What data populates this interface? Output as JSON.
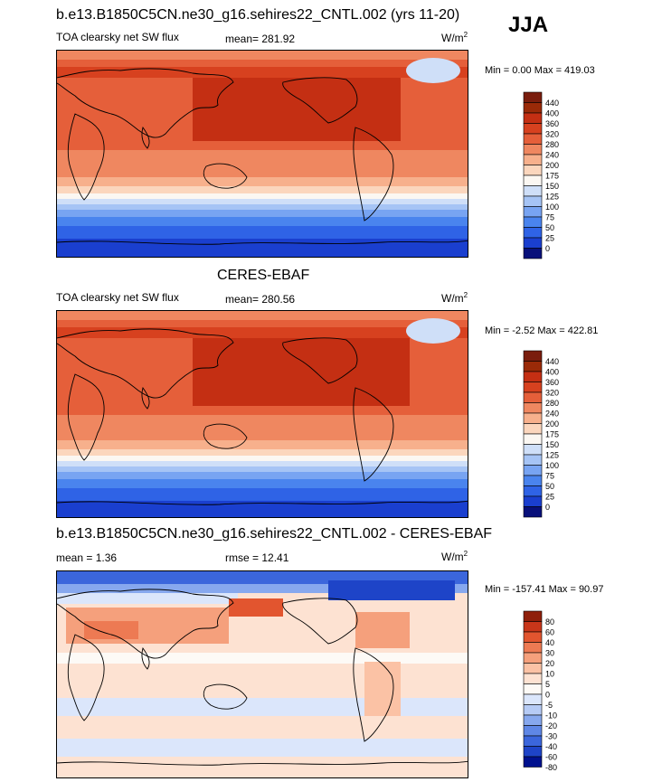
{
  "season": "JJA",
  "colors": {
    "abs_scale": [
      "#08107a",
      "#1a3fcf",
      "#2f63e6",
      "#4a84ee",
      "#78a4f2",
      "#a6c4f5",
      "#cfdff8",
      "#fbf7f2",
      "#fbd6bd",
      "#f7b08c",
      "#ef8760",
      "#e55f3a",
      "#d7411f",
      "#c42f13",
      "#9a2a08",
      "#7a1d0d"
    ],
    "diff_scale": [
      "#00118f",
      "#1e44c8",
      "#3b66dc",
      "#5f87e6",
      "#87a8ee",
      "#b6cbf5",
      "#dbe6fb",
      "#fdfaf6",
      "#fde2d2",
      "#fbc2a5",
      "#f5a07c",
      "#ed7a53",
      "#e2552f",
      "#c8361a",
      "#8f1f0a"
    ],
    "land_outline": "#000000"
  },
  "panels": [
    {
      "id": "model",
      "title": "b.e13.B1850C5CN.ne30_g16.sehires22_CNTL.002 (yrs 11-20)",
      "variable": "TOA clearsky net SW flux",
      "mean_label": "mean= 281.92",
      "rmse_label": "",
      "units_base": "W/m",
      "units_exp": "2",
      "min_max": "Min =   0.00 Max = 419.03",
      "colorbar_labels": [
        "440",
        "400",
        "360",
        "320",
        "280",
        "240",
        "200",
        "175",
        "150",
        "125",
        "100",
        "75",
        "50",
        "25",
        "0"
      ]
    },
    {
      "id": "obs",
      "title": "CERES-EBAF",
      "variable": "TOA clearsky net SW flux",
      "mean_label": "mean= 280.56",
      "rmse_label": "",
      "units_base": "W/m",
      "units_exp": "2",
      "min_max": "Min =  -2.52 Max = 422.81",
      "colorbar_labels": [
        "440",
        "400",
        "360",
        "320",
        "280",
        "240",
        "200",
        "175",
        "150",
        "125",
        "100",
        "75",
        "50",
        "25",
        "0"
      ]
    },
    {
      "id": "diff",
      "title": "b.e13.B1850C5CN.ne30_g16.sehires22_CNTL.002 - CERES-EBAF",
      "variable": "",
      "mean_label": "mean =   1.36",
      "rmse_label": "rmse =  12.41",
      "units_base": "W/m",
      "units_exp": "2",
      "min_max": "Min = -157.41 Max =  90.97",
      "colorbar_labels": [
        "80",
        "60",
        "40",
        "30",
        "20",
        "10",
        "5",
        "0",
        "-5",
        "-10",
        "-20",
        "-30",
        "-40",
        "-60",
        "-80"
      ]
    }
  ]
}
